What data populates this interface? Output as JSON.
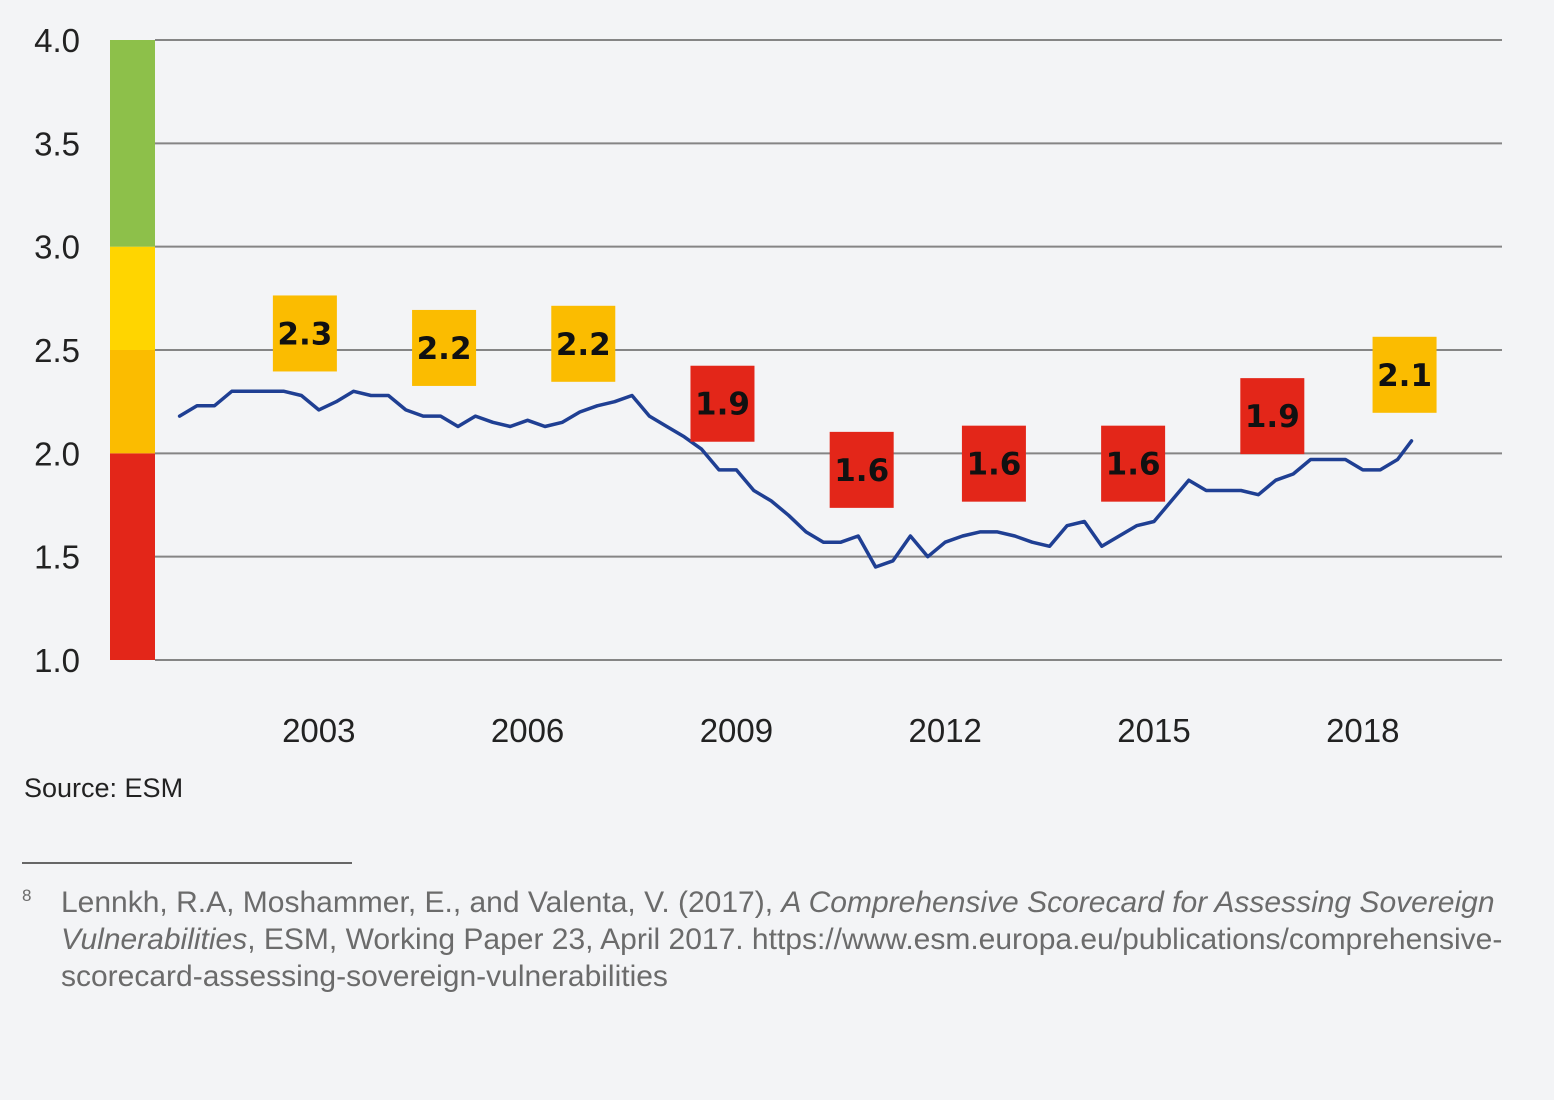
{
  "chart_data": {
    "type": "line",
    "title": "",
    "xlabel": "",
    "ylabel": "",
    "ylim": [
      1.0,
      4.0
    ],
    "y_ticks": [
      "1.0",
      "1.5",
      "2.0",
      "2.5",
      "3.0",
      "3.5",
      "4.0"
    ],
    "x_ticks": [
      {
        "label": "2003",
        "value": 2003
      },
      {
        "label": "2006",
        "value": 2006
      },
      {
        "label": "2009",
        "value": 2009
      },
      {
        "label": "2012",
        "value": 2012
      },
      {
        "label": "2015",
        "value": 2015
      },
      {
        "label": "2018",
        "value": 2018
      }
    ],
    "xlim": [
      2000.0,
      2020.0
    ],
    "grid": true,
    "color_scale": [
      {
        "from": 1.0,
        "to": 2.0,
        "color": "#e32619"
      },
      {
        "from": 2.0,
        "to": 2.5,
        "color": "#fbbc00"
      },
      {
        "from": 2.5,
        "to": 3.0,
        "color": "#ffd500"
      },
      {
        "from": 3.0,
        "to": 4.0,
        "color": "#8dc04a"
      }
    ],
    "series": [
      {
        "color": "#1f3f93",
        "x": [
          2001.0,
          2001.25,
          2001.5,
          2001.75,
          2002.0,
          2002.25,
          2002.5,
          2002.75,
          2003.0,
          2003.25,
          2003.5,
          2003.75,
          2004.0,
          2004.25,
          2004.5,
          2004.75,
          2005.0,
          2005.25,
          2005.5,
          2005.75,
          2006.0,
          2006.25,
          2006.5,
          2006.75,
          2007.0,
          2007.25,
          2007.5,
          2007.75,
          2008.0,
          2008.25,
          2008.5,
          2008.75,
          2009.0,
          2009.25,
          2009.5,
          2009.75,
          2010.0,
          2010.25,
          2010.5,
          2010.75,
          2011.0,
          2011.25,
          2011.5,
          2011.75,
          2012.0,
          2012.25,
          2012.5,
          2012.75,
          2013.0,
          2013.25,
          2013.5,
          2013.75,
          2014.0,
          2014.25,
          2014.5,
          2014.75,
          2015.0,
          2015.25,
          2015.5,
          2015.75,
          2016.0,
          2016.25,
          2016.5,
          2016.75,
          2017.0,
          2017.25,
          2017.5,
          2017.75,
          2018.0,
          2018.25,
          2018.5,
          2018.7
        ],
        "values": [
          2.18,
          2.23,
          2.23,
          2.3,
          2.3,
          2.3,
          2.3,
          2.28,
          2.21,
          2.25,
          2.3,
          2.28,
          2.28,
          2.21,
          2.18,
          2.18,
          2.13,
          2.18,
          2.15,
          2.13,
          2.16,
          2.13,
          2.15,
          2.2,
          2.23,
          2.25,
          2.28,
          2.18,
          2.13,
          2.08,
          2.02,
          1.92,
          1.92,
          1.82,
          1.77,
          1.7,
          1.62,
          1.57,
          1.57,
          1.6,
          1.45,
          1.48,
          1.6,
          1.5,
          1.57,
          1.6,
          1.62,
          1.62,
          1.6,
          1.57,
          1.55,
          1.65,
          1.67,
          1.55,
          1.6,
          1.65,
          1.67,
          1.77,
          1.87,
          1.82,
          1.82,
          1.82,
          1.8,
          1.87,
          1.9,
          1.97,
          1.97,
          1.97,
          1.92,
          1.92,
          1.97,
          2.06
        ]
      }
    ],
    "annotations": [
      {
        "text": "2.3",
        "x": 2002.8,
        "y": 2.58,
        "color": "#fbbc00"
      },
      {
        "text": "2.2",
        "x": 2004.8,
        "y": 2.51,
        "color": "#fbbc00"
      },
      {
        "text": "2.2",
        "x": 2006.8,
        "y": 2.53,
        "color": "#fbbc00"
      },
      {
        "text": "1.9",
        "x": 2008.8,
        "y": 2.24,
        "color": "#e32619"
      },
      {
        "text": "1.6",
        "x": 2010.8,
        "y": 1.92,
        "color": "#e32619"
      },
      {
        "text": "1.6",
        "x": 2012.7,
        "y": 1.95,
        "color": "#e32619"
      },
      {
        "text": "1.6",
        "x": 2014.7,
        "y": 1.95,
        "color": "#e32619"
      },
      {
        "text": "1.9",
        "x": 2016.7,
        "y": 2.18,
        "color": "#e32619"
      },
      {
        "text": "2.1",
        "x": 2018.6,
        "y": 2.38,
        "color": "#fbbc00"
      }
    ]
  },
  "source": "Source: ESM",
  "footnote": {
    "marker": "8",
    "text_before": "Lennkh, R.A, Moshammer, E., and Valenta, V. (2017), ",
    "title_italic": "A Comprehensive Scorecard for Assessing Sovereign Vulnerabilities",
    "text_after": ", ESM, Working Paper 23, April 2017. https://www.esm.europa.eu/publications/comprehensive-scorecard-assessing-sovereign-vulnerabilities"
  }
}
